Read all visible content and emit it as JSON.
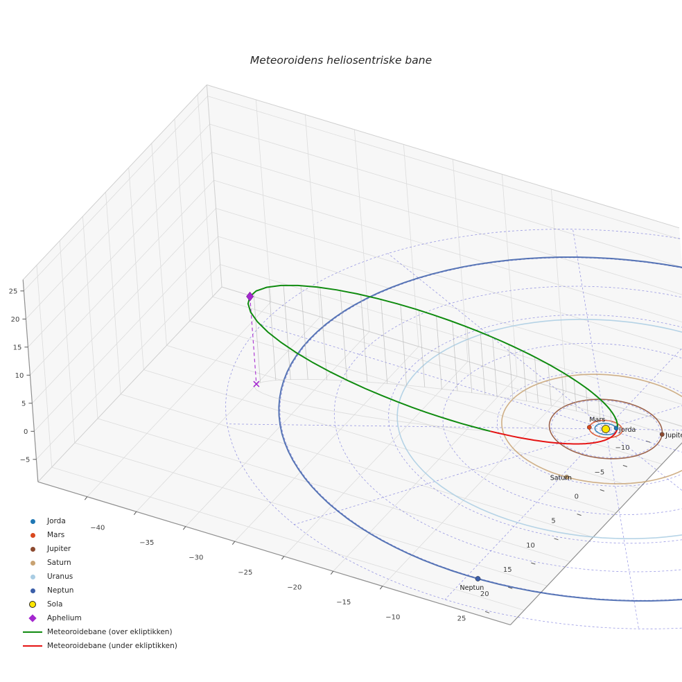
{
  "title": "Meteoroidens heliosentriske bane",
  "chart_data": {
    "type": "line",
    "projection": "3d",
    "title": "Meteoroidens heliosentriske bane",
    "axes": {
      "x_ticks": [
        -40,
        -35,
        -30,
        -25,
        -20,
        -15,
        -10
      ],
      "y_ticks": [
        -10,
        -5,
        0,
        5,
        10,
        15,
        20,
        25
      ],
      "z_ticks": [
        -5,
        0,
        5,
        10,
        15,
        20,
        25
      ],
      "x_range": [
        -45,
        3
      ],
      "y_range": [
        -12,
        28
      ],
      "z_range": [
        -9,
        27
      ],
      "grid": true,
      "pane_color": "#f2f2f2",
      "grid_color": "#dcdcdc"
    },
    "ecliptic_grid": {
      "circle_radii_au": [
        5,
        10,
        15,
        20,
        25,
        30,
        35
      ],
      "radial_lines_deg_step": 30,
      "max_radius_au": 35,
      "color": "#3a3acd",
      "line_style": "dashed"
    },
    "sun": {
      "label": "Sola",
      "position_au": [
        0,
        0,
        0
      ],
      "color": "#ffe600",
      "edge_color": "#222222"
    },
    "planets": [
      {
        "name": "Jorda",
        "orbit_radius_au": 1.0,
        "angle_deg": -40,
        "color": "#1f77b4",
        "label_visible": true,
        "label_offset": [
          4,
          5
        ]
      },
      {
        "name": "Mars",
        "orbit_radius_au": 1.52,
        "angle_deg": 160,
        "color": "#d9481e",
        "label_visible": true,
        "label_offset": [
          0,
          -8
        ]
      },
      {
        "name": "Jupiter",
        "orbit_radius_au": 5.2,
        "angle_deg": -21,
        "color": "#8c4a2f",
        "label_visible": true,
        "label_offset": [
          5,
          4
        ]
      },
      {
        "name": "Saturn",
        "orbit_radius_au": 9.58,
        "angle_deg": 87,
        "color": "#c8a272",
        "label_visible": true,
        "label_offset": [
          -24,
          4
        ]
      },
      {
        "name": "Uranus",
        "orbit_radius_au": 19.2,
        "angle_deg": -50,
        "color": "#a9cce3",
        "label_visible": false,
        "label_offset": [
          4,
          4
        ]
      },
      {
        "name": "Neptun",
        "orbit_radius_au": 30.1,
        "angle_deg": 88,
        "color": "#3b5ea9",
        "label_visible": true,
        "label_offset": [
          -26,
          16
        ]
      }
    ],
    "meteoroid_orbit": {
      "semi_major_axis_au": 18.5,
      "eccentricity": 0.946,
      "inclination_deg": 60,
      "arg_perihelion_deg": 30,
      "ascending_node_deg": -33.5,
      "above_ecliptic_color": "#0f8b0f",
      "below_ecliptic_color": "#e51212",
      "aphelium_marker": {
        "label": "Aphelium",
        "color": "#a428cf"
      }
    }
  },
  "legend": {
    "items": [
      {
        "label": "Jorda",
        "marker": "dot",
        "color": "#1f77b4"
      },
      {
        "label": "Mars",
        "marker": "dot",
        "color": "#d9481e"
      },
      {
        "label": "Jupiter",
        "marker": "dot",
        "color": "#8c4a2f"
      },
      {
        "label": "Saturn",
        "marker": "dot",
        "color": "#c8a272"
      },
      {
        "label": "Uranus",
        "marker": "dot",
        "color": "#a9cce3"
      },
      {
        "label": "Neptun",
        "marker": "dot",
        "color": "#3b5ea9"
      },
      {
        "label": "Sola",
        "marker": "circle-outlined",
        "color": "#ffe600"
      },
      {
        "label": "Aphelium",
        "marker": "diamond",
        "color": "#a428cf"
      },
      {
        "label": "Meteoroidebane (over ekliptikken)",
        "marker": "line",
        "color": "#0f8b0f"
      },
      {
        "label": "Meteoroidebane (under ekliptikken)",
        "marker": "line",
        "color": "#e51212"
      }
    ]
  }
}
